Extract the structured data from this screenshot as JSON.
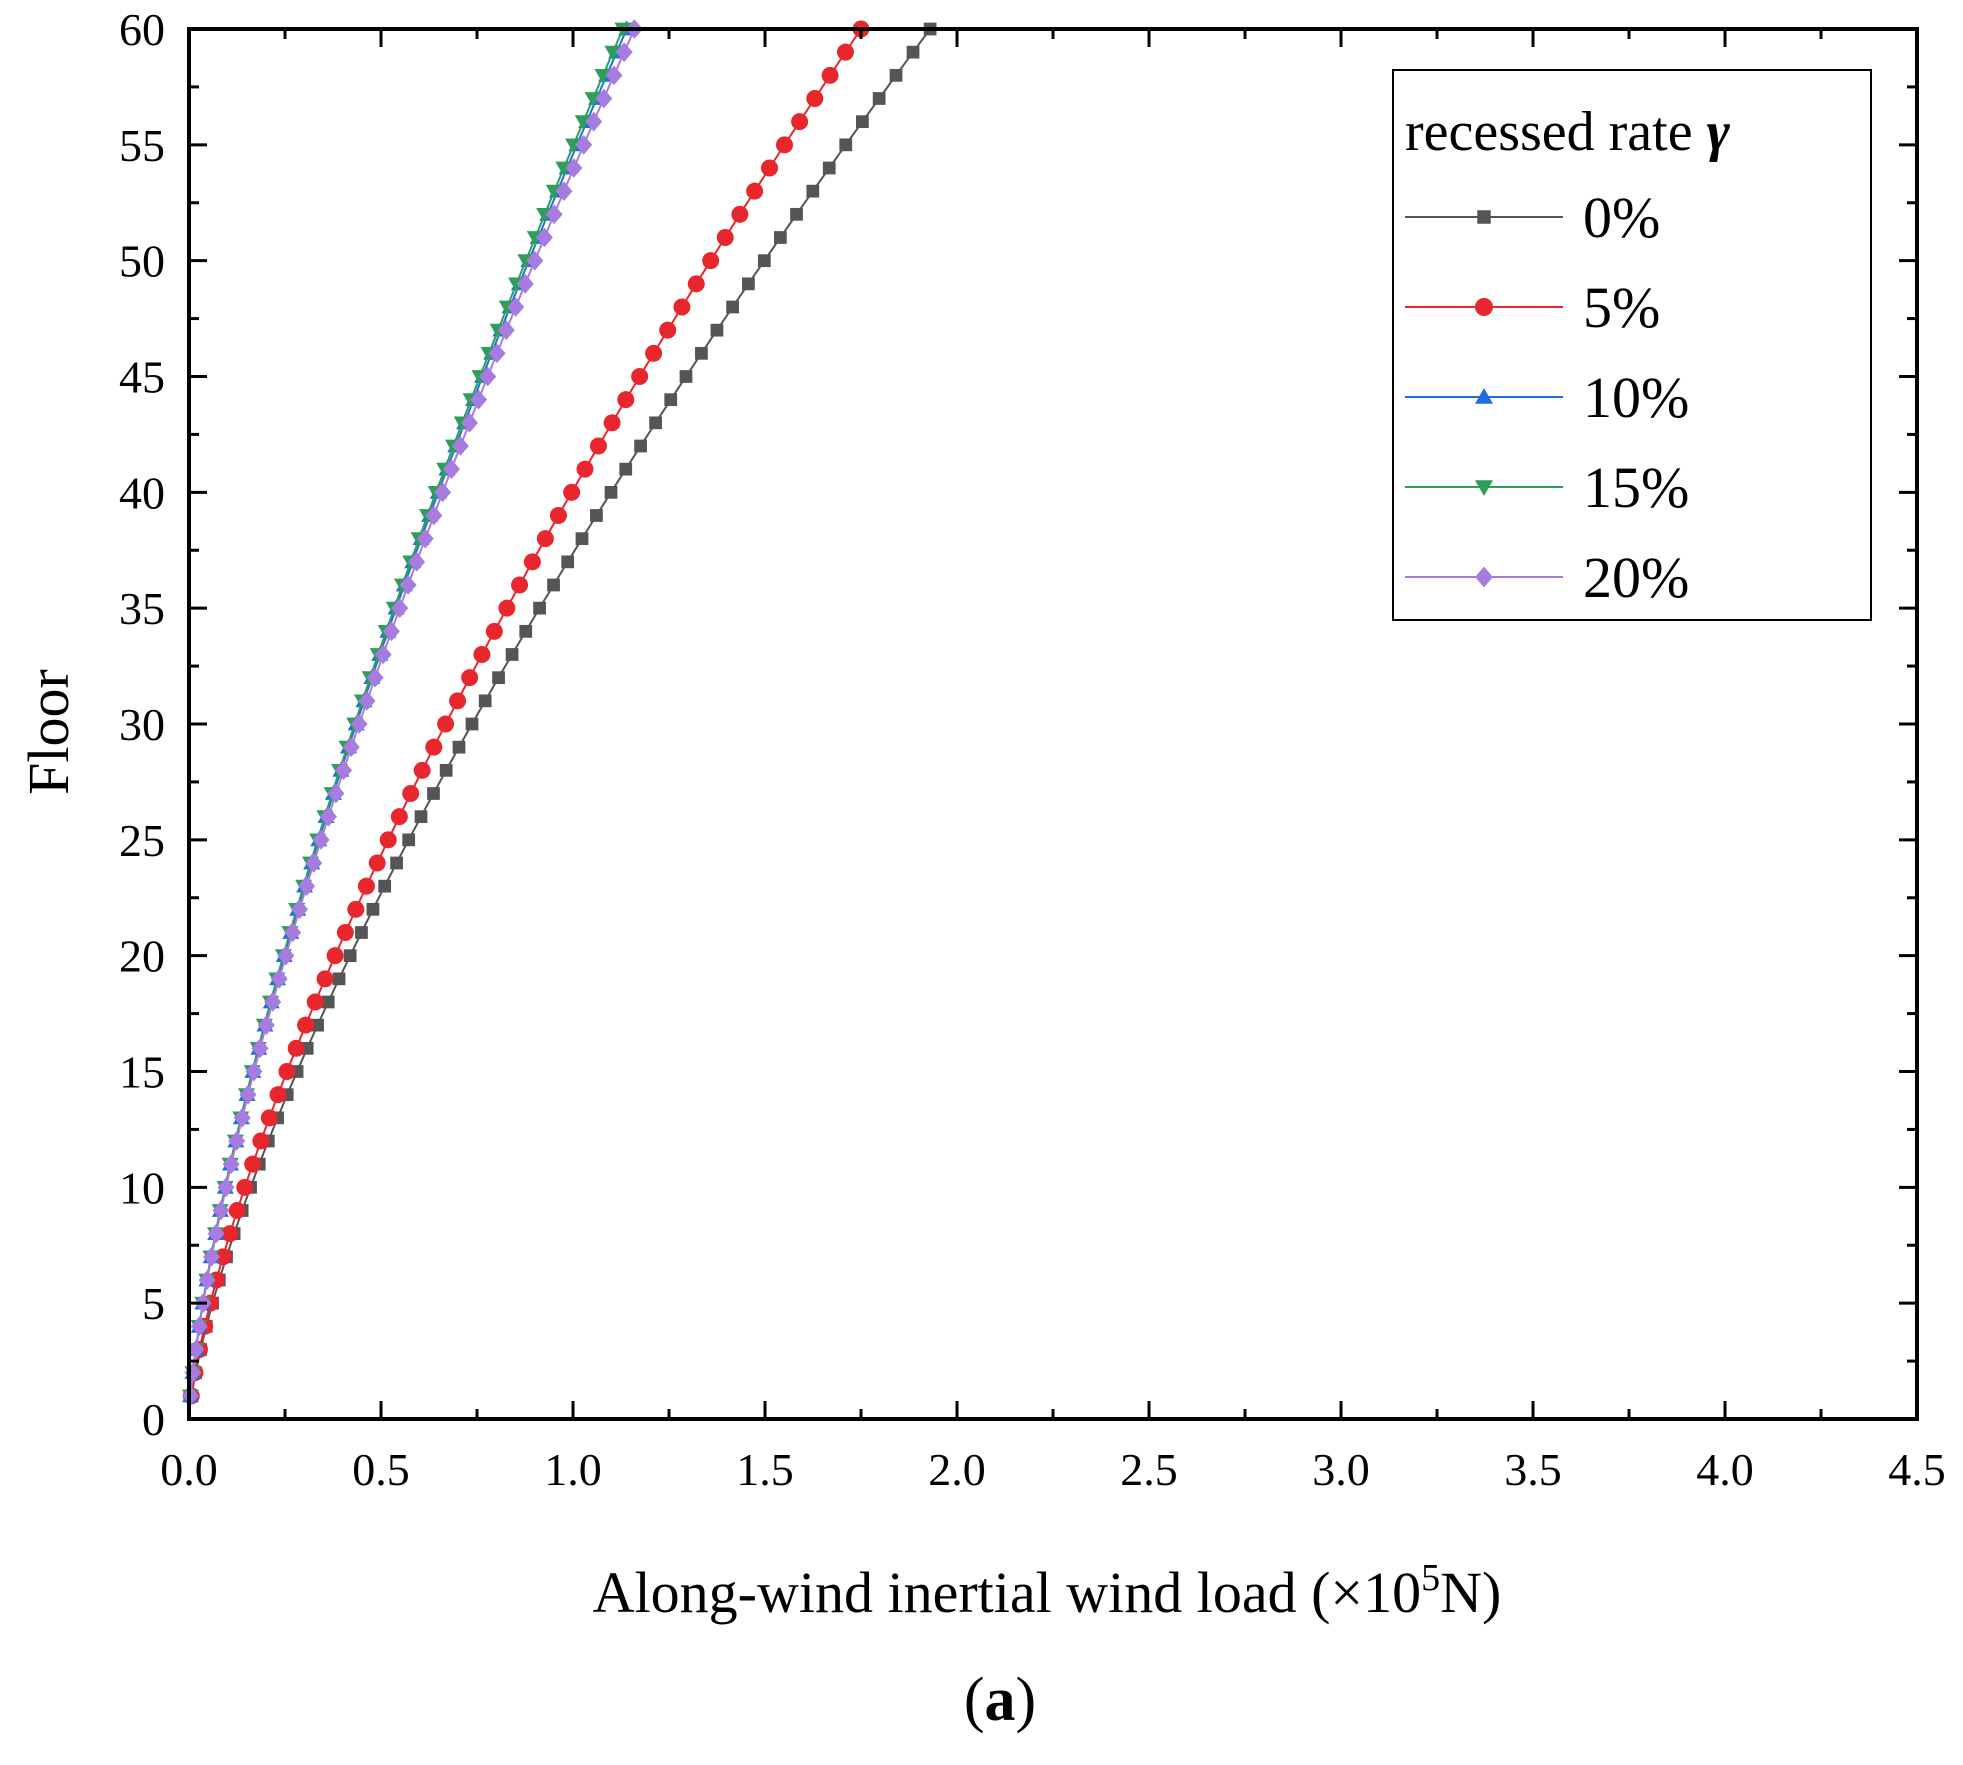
{
  "chart_data": {
    "type": "line",
    "title": "",
    "xlabel": "Along-wind inertial wind load (×10",
    "xlabel_exp": "5",
    "xlabel_suffix": "N)",
    "ylabel": "Floor",
    "xlim": [
      0,
      4.5
    ],
    "ylim": [
      0,
      60
    ],
    "xticks": [
      "0.0",
      "0.5",
      "1.0",
      "1.5",
      "2.0",
      "2.5",
      "3.0",
      "3.5",
      "4.0",
      "4.5"
    ],
    "yticks": [
      "0",
      "5",
      "10",
      "15",
      "20",
      "25",
      "30",
      "35",
      "40",
      "45",
      "50",
      "55",
      "60"
    ],
    "legend": {
      "title": "recessed rate",
      "title_symbol": "γ",
      "position": "top-right"
    },
    "panel_label": "a",
    "series": [
      {
        "name": "0%",
        "color": "#555555",
        "marker": "square",
        "floors": [
          1,
          60
        ],
        "x_at_top": 1.93,
        "exponent": 0.72
      },
      {
        "name": "5%",
        "color": "#e8262d",
        "marker": "circle",
        "floors": [
          1,
          60
        ],
        "x_at_top": 1.75,
        "exponent": 0.72
      },
      {
        "name": "10%",
        "color": "#1f6fe0",
        "marker": "triangle-up",
        "floors": [
          1,
          60
        ],
        "x_at_top": 1.14,
        "exponent": 0.72
      },
      {
        "name": "15%",
        "color": "#2e9e5b",
        "marker": "triangle-down",
        "floors": [
          1,
          60
        ],
        "x_at_top": 1.13,
        "exponent": 0.72
      },
      {
        "name": "20%",
        "color": "#a77be0",
        "marker": "diamond",
        "floors": [
          1,
          60
        ],
        "x_at_top": 1.16,
        "exponent": 0.72
      }
    ]
  }
}
